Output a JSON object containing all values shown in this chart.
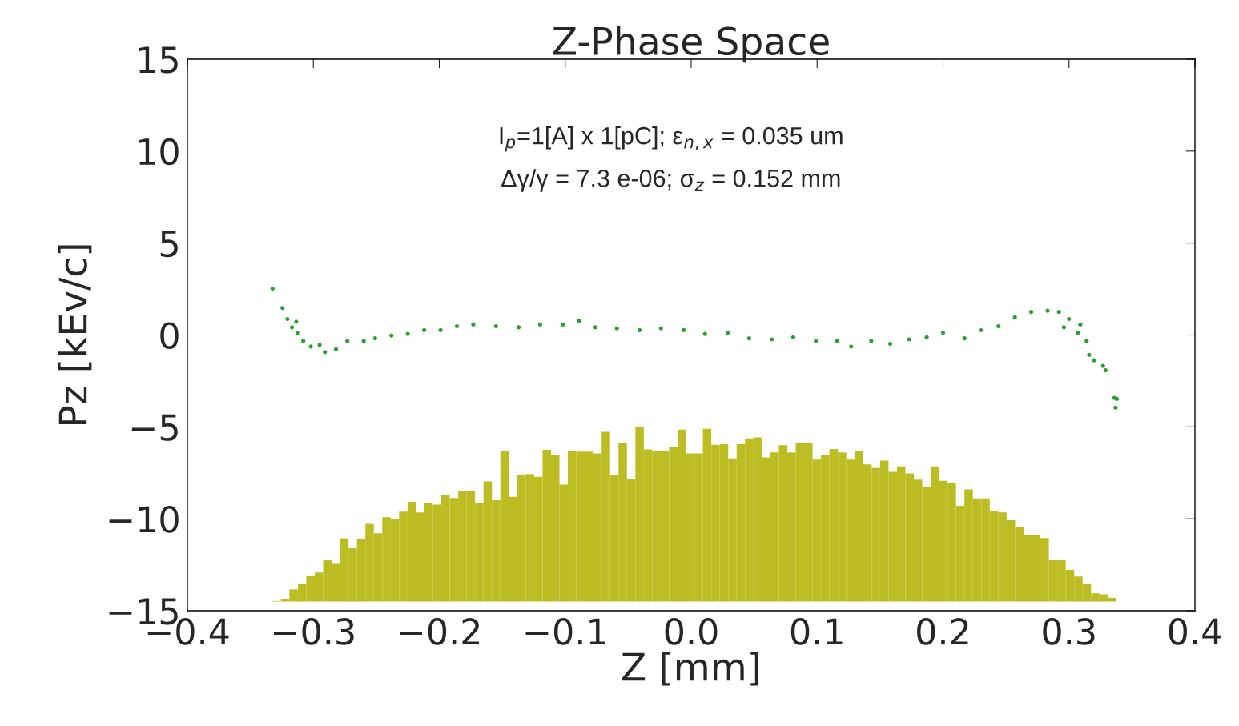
{
  "chart_data": {
    "type": "scatter",
    "title": "Z-Phase Space",
    "xlabel": "Z [mm]",
    "ylabel": "Pz [kEv/c]",
    "annotations": [
      "I$_{p}$=1[A] x 1[pC]; ε$_{n,x}$ = 0.035 um",
      "Δγ/γ = 7.3 e-06; σ$_{z}$ = 0.152 mm"
    ],
    "xlim": [
      -0.4,
      0.4
    ],
    "ylim": [
      -15,
      15
    ],
    "xticks": [
      {
        "value": -0.4,
        "label": "−0.4"
      },
      {
        "value": -0.3,
        "label": "−0.3"
      },
      {
        "value": -0.2,
        "label": "−0.2"
      },
      {
        "value": -0.1,
        "label": "−0.1"
      },
      {
        "value": 0.0,
        "label": "0.0"
      },
      {
        "value": 0.1,
        "label": "0.1"
      },
      {
        "value": 0.2,
        "label": "0.2"
      },
      {
        "value": 0.3,
        "label": "0.3"
      },
      {
        "value": 0.4,
        "label": "0.4"
      }
    ],
    "yticks": [
      {
        "value": -15,
        "label": "−15"
      },
      {
        "value": -10,
        "label": "−10"
      },
      {
        "value": -5,
        "label": "−5"
      },
      0,
      5,
      10,
      15
    ],
    "grid": false,
    "legend": false,
    "marker": "circle",
    "series": [
      {
        "type": "histogram",
        "color": "#bcbd22",
        "bins": [
          -0.3324,
          -0.3257,
          -0.319,
          -0.3123,
          -0.3056,
          -0.2989,
          -0.2922,
          -0.2855,
          -0.2788,
          -0.2721,
          -0.2654,
          -0.2587,
          -0.252,
          -0.2453,
          -0.2386,
          -0.2319,
          -0.2252,
          -0.2185,
          -0.2118,
          -0.2051,
          -0.1984,
          -0.1917,
          -0.185,
          -0.1783,
          -0.1716,
          -0.1649,
          -0.1582,
          -0.1515,
          -0.1448,
          -0.1381,
          -0.1314,
          -0.1247,
          -0.118,
          -0.1113,
          -0.1046,
          -0.0979,
          -0.0912,
          -0.0845,
          -0.0778,
          -0.0711,
          -0.0644,
          -0.0577,
          -0.051,
          -0.0443,
          -0.0376,
          -0.0309,
          -0.0242,
          -0.0175,
          -0.0108,
          -0.0041,
          0.0026,
          0.0093,
          0.016,
          0.0227,
          0.0294,
          0.0361,
          0.0428,
          0.0495,
          0.0562,
          0.0629,
          0.0696,
          0.0763,
          0.083,
          0.0897,
          0.0964,
          0.1031,
          0.1098,
          0.1165,
          0.1232,
          0.1299,
          0.1366,
          0.1433,
          0.15,
          0.1567,
          0.1634,
          0.1701,
          0.1768,
          0.1835,
          0.1902,
          0.1969,
          0.2036,
          0.2103,
          0.217,
          0.2237,
          0.2304,
          0.2371,
          0.2438,
          0.2505,
          0.2572,
          0.2639,
          0.2706,
          0.2773,
          0.284,
          0.2907,
          0.2974,
          0.3041,
          0.3108,
          0.3175,
          0.3242,
          0.3309,
          0.3376
        ],
        "values": [
          0.03,
          0.15,
          0.66,
          0.98,
          1.41,
          1.58,
          2.24,
          2.09,
          3.44,
          2.91,
          3.39,
          4.22,
          3.71,
          4.58,
          4.49,
          4.89,
          5.42,
          4.85,
          5.36,
          5.27,
          5.78,
          5.63,
          6.03,
          6.0,
          5.37,
          6.53,
          5.51,
          8.19,
          5.69,
          6.89,
          6.93,
          6.78,
          8.25,
          7.97,
          6.36,
          8.19,
          8.15,
          8.15,
          8.06,
          9.23,
          6.89,
          8.63,
          6.65,
          9.47,
          8.27,
          8.16,
          8.16,
          8.39,
          9.35,
          8.06,
          8.06,
          9.4,
          8.52,
          8.56,
          7.78,
          8.56,
          8.87,
          8.93,
          7.84,
          8.11,
          8.5,
          8.11,
          8.61,
          8.61,
          7.72,
          7.96,
          8.29,
          8.11,
          7.72,
          8.19,
          7.46,
          7.26,
          7.66,
          7.05,
          7.35,
          6.97,
          6.63,
          6.2,
          7.35,
          6.57,
          6.46,
          5.2,
          6.1,
          5.61,
          5.61,
          4.9,
          4.84,
          4.42,
          4.05,
          3.63,
          3.63,
          3.45,
          2.24,
          2.24,
          1.72,
          1.36,
          0.94,
          0.45,
          0.39,
          0.2
        ],
        "base": [
          -14.5,
          -14.5,
          -14.5,
          -14.5,
          -14.5,
          -14.5,
          -14.5,
          -14.5,
          -14.5,
          -14.5,
          -14.5,
          -14.5,
          -14.5,
          -14.5,
          -14.5,
          -14.5,
          -14.5,
          -14.5,
          -14.5,
          -14.5,
          -14.5,
          -14.5,
          -14.5,
          -14.5,
          -14.5,
          -14.5,
          -14.5,
          -14.5,
          -14.5,
          -14.5,
          -14.5,
          -14.5,
          -14.5,
          -14.5,
          -14.5,
          -14.5,
          -14.5,
          -14.5,
          -14.5,
          -14.5,
          -14.5,
          -14.5,
          -14.5,
          -14.5,
          -14.5,
          -14.5,
          -14.5,
          -14.5,
          -14.5,
          -14.5,
          -14.5,
          -14.5,
          -14.5,
          -14.5,
          -14.5,
          -14.5,
          -14.5,
          -14.5,
          -14.5,
          -14.5,
          -14.5,
          -14.5,
          -14.5,
          -14.5,
          -14.5,
          -14.5,
          -14.5,
          -14.5,
          -14.5,
          -14.5,
          -14.5,
          -14.5,
          -14.5,
          -14.5,
          -14.5,
          -14.5,
          -14.5,
          -14.5,
          -14.5,
          -14.5,
          -14.5,
          -14.5,
          -14.5,
          -14.5,
          -14.5,
          -14.5,
          -14.5,
          -14.5,
          -14.5,
          -14.5,
          -14.5,
          -14.5,
          -14.5,
          -14.5,
          -14.5,
          -14.5,
          -14.5,
          -14.5,
          -14.5,
          -14.5
        ]
      },
      {
        "color": "#2ca02c",
        "x": [
          -0.3324,
          -0.3245,
          -0.3206,
          -0.3136,
          -0.317,
          -0.3127,
          -0.308,
          -0.302,
          -0.2908,
          -0.295,
          -0.282,
          -0.273,
          -0.26,
          -0.251,
          -0.238,
          -0.225,
          -0.212,
          -0.199,
          -0.186,
          -0.173,
          -0.155,
          -0.137,
          -0.12,
          -0.102,
          -0.089,
          -0.076,
          -0.059,
          -0.041,
          -0.024,
          -0.006,
          0.011,
          0.029,
          0.046,
          0.064,
          0.081,
          0.099,
          0.116,
          0.127,
          0.143,
          0.158,
          0.173,
          0.187,
          0.2,
          0.217,
          0.23,
          0.244,
          0.257,
          0.27,
          0.283,
          0.292,
          0.296,
          0.3,
          0.307,
          0.309,
          0.314,
          0.316,
          0.32,
          0.327,
          0.329,
          0.336,
          0.338,
          0.337
        ],
        "values": [
          2.52,
          1.47,
          0.87,
          0.72,
          0.42,
          0.12,
          -0.33,
          -0.63,
          -0.93,
          -0.54,
          -0.78,
          -0.33,
          -0.33,
          -0.18,
          -0.03,
          0.06,
          0.27,
          0.27,
          0.48,
          0.57,
          0.48,
          0.42,
          0.57,
          0.57,
          0.78,
          0.42,
          0.36,
          0.27,
          0.36,
          0.27,
          0.06,
          0.12,
          -0.18,
          -0.24,
          -0.12,
          -0.33,
          -0.33,
          -0.63,
          -0.33,
          -0.48,
          -0.24,
          -0.12,
          0.12,
          -0.18,
          0.27,
          0.48,
          0.96,
          1.26,
          1.32,
          1.26,
          0.42,
          0.87,
          0.12,
          0.57,
          -0.33,
          -1.08,
          -1.38,
          -1.68,
          -1.92,
          -3.42,
          -3.48,
          -3.96
        ]
      }
    ]
  }
}
